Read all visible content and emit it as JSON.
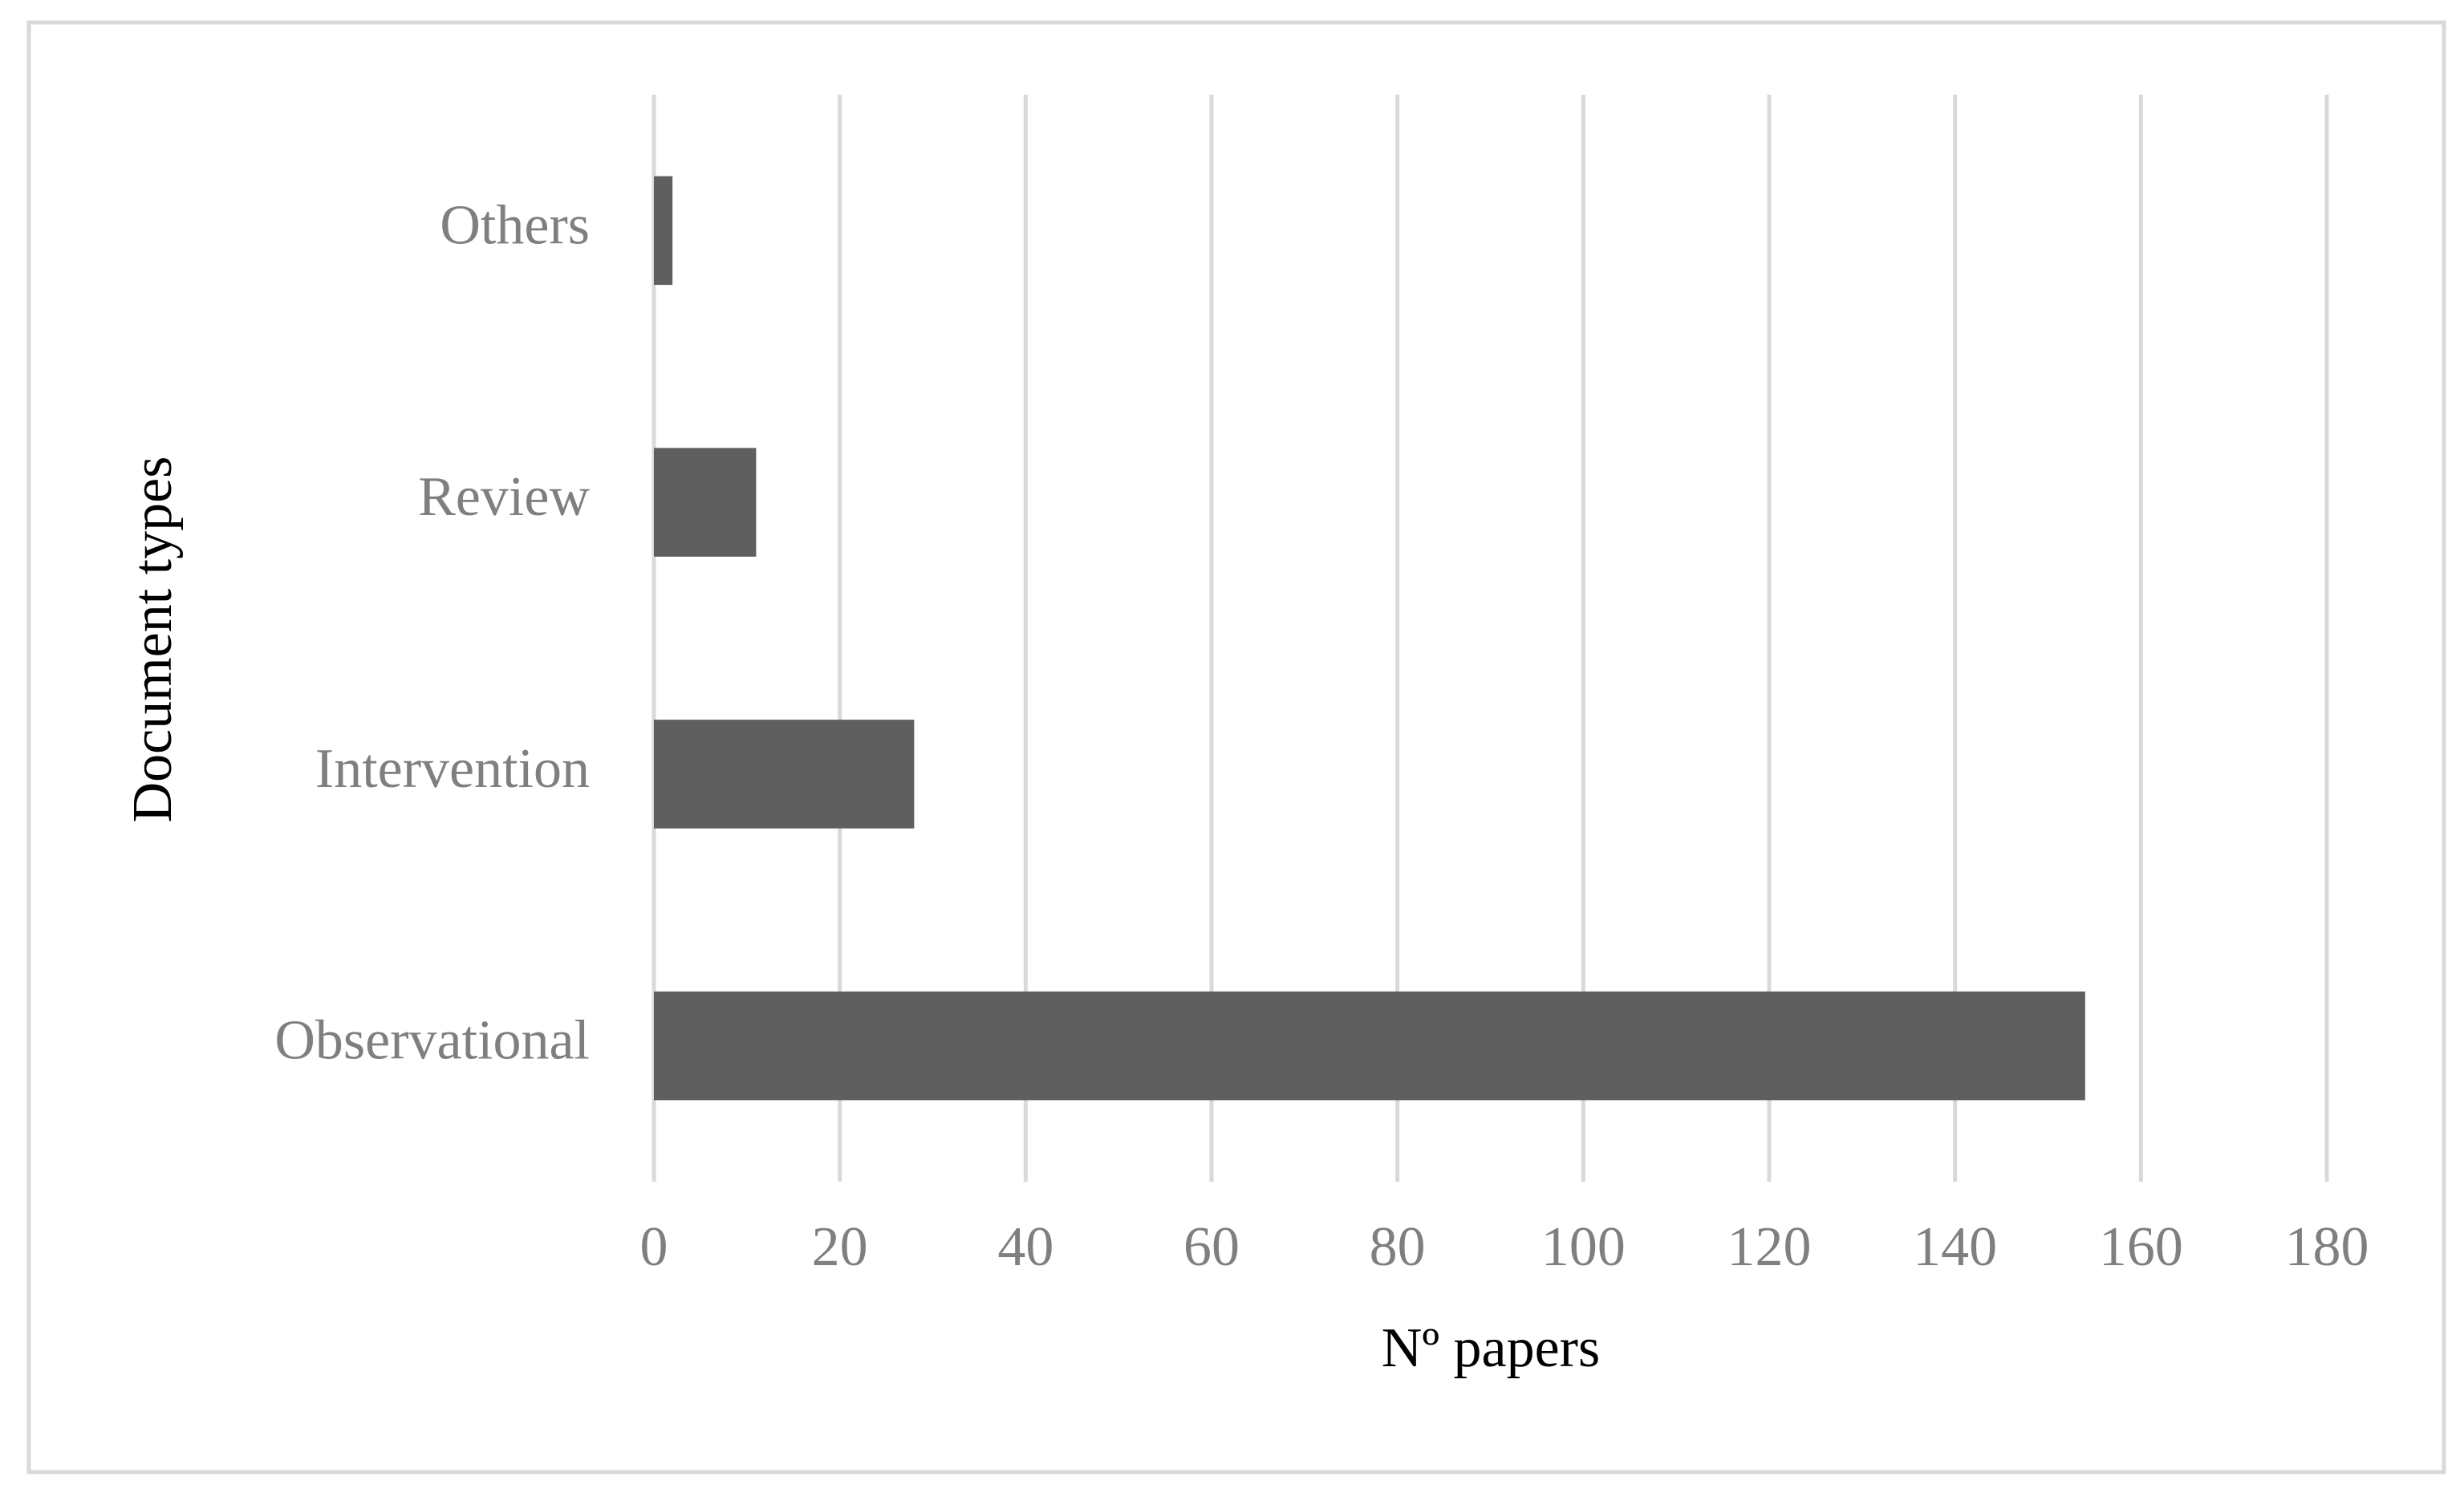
{
  "chart_data": {
    "type": "bar",
    "orientation": "horizontal",
    "x_label": "Nº papers",
    "y_label": "Document types",
    "categories": [
      "Others",
      "Review",
      "Intervention",
      "Observational"
    ],
    "values": [
      2,
      11,
      28,
      154
    ],
    "color": "#5f5f5f",
    "xlim": [
      0,
      180
    ],
    "xticks": [
      0,
      20,
      40,
      60,
      80,
      100,
      120,
      140,
      160,
      180
    ],
    "grid": true
  }
}
